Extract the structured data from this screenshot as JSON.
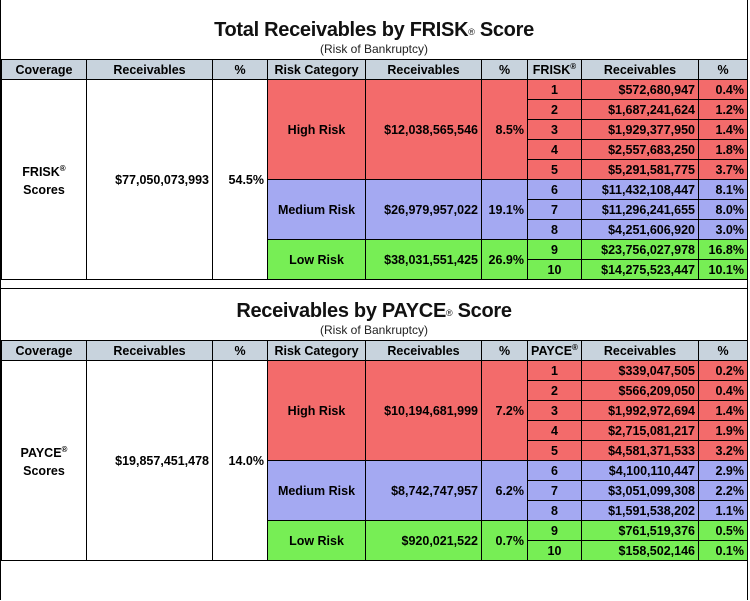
{
  "frisk": {
    "title": "Total Receivables by FRISK",
    "title_mark": "®",
    "title_suffix": " Score",
    "subtitle": "(Risk of Bankruptcy)",
    "headers": [
      "Coverage",
      "Receivables",
      "%",
      "Risk Category",
      "Receivables",
      "%",
      "FRISK",
      "Receivables",
      "%"
    ],
    "score_header_mark": "®",
    "coverage_line1": "FRISK",
    "coverage_mark": "®",
    "coverage_line2": "Scores",
    "total_receivables": "$77,050,073,993",
    "total_pct": "54.5%",
    "categories": [
      {
        "name": "High Risk",
        "receivables": "$12,038,565,546",
        "pct": "8.5%"
      },
      {
        "name": "Medium Risk",
        "receivables": "$26,979,957,022",
        "pct": "19.1%"
      },
      {
        "name": "Low Risk",
        "receivables": "$38,031,551,425",
        "pct": "26.9%"
      }
    ],
    "scores": [
      {
        "score": "1",
        "receivables": "$572,680,947",
        "pct": "0.4%"
      },
      {
        "score": "2",
        "receivables": "$1,687,241,624",
        "pct": "1.2%"
      },
      {
        "score": "3",
        "receivables": "$1,929,377,950",
        "pct": "1.4%"
      },
      {
        "score": "4",
        "receivables": "$2,557,683,250",
        "pct": "1.8%"
      },
      {
        "score": "5",
        "receivables": "$5,291,581,775",
        "pct": "3.7%"
      },
      {
        "score": "6",
        "receivables": "$11,432,108,447",
        "pct": "8.1%"
      },
      {
        "score": "7",
        "receivables": "$11,296,241,655",
        "pct": "8.0%"
      },
      {
        "score": "8",
        "receivables": "$4,251,606,920",
        "pct": "3.0%"
      },
      {
        "score": "9",
        "receivables": "$23,756,027,978",
        "pct": "16.8%"
      },
      {
        "score": "10",
        "receivables": "$14,275,523,447",
        "pct": "10.1%"
      }
    ]
  },
  "payce": {
    "title": "Receivables by PAYCE",
    "title_mark": "®",
    "title_suffix": " Score",
    "subtitle": "(Risk of Bankruptcy)",
    "headers": [
      "Coverage",
      "Receivables",
      "%",
      "Risk Category",
      "Receivables",
      "%",
      "PAYCE",
      "Receivables",
      "%"
    ],
    "score_header_mark": "®",
    "coverage_line1": "PAYCE",
    "coverage_mark": "®",
    "coverage_line2": "Scores",
    "total_receivables": "$19,857,451,478",
    "total_pct": "14.0%",
    "categories": [
      {
        "name": "High Risk",
        "receivables": "$10,194,681,999",
        "pct": "7.2%"
      },
      {
        "name": "Medium Risk",
        "receivables": "$8,742,747,957",
        "pct": "6.2%"
      },
      {
        "name": "Low Risk",
        "receivables": "$920,021,522",
        "pct": "0.7%"
      }
    ],
    "scores": [
      {
        "score": "1",
        "receivables": "$339,047,505",
        "pct": "0.2%"
      },
      {
        "score": "2",
        "receivables": "$566,209,050",
        "pct": "0.4%"
      },
      {
        "score": "3",
        "receivables": "$1,992,972,694",
        "pct": "1.4%"
      },
      {
        "score": "4",
        "receivables": "$2,715,081,217",
        "pct": "1.9%"
      },
      {
        "score": "5",
        "receivables": "$4,581,371,533",
        "pct": "3.2%"
      },
      {
        "score": "6",
        "receivables": "$4,100,110,447",
        "pct": "2.9%"
      },
      {
        "score": "7",
        "receivables": "$3,051,099,308",
        "pct": "2.2%"
      },
      {
        "score": "8",
        "receivables": "$1,591,538,202",
        "pct": "1.1%"
      },
      {
        "score": "9",
        "receivables": "$761,519,376",
        "pct": "0.5%"
      },
      {
        "score": "10",
        "receivables": "$158,502,146",
        "pct": "0.1%"
      }
    ]
  },
  "colors": {
    "high": "#f36b6b",
    "medium": "#a4a9f2",
    "low": "#77ee55",
    "header": "#c8d3dd"
  }
}
